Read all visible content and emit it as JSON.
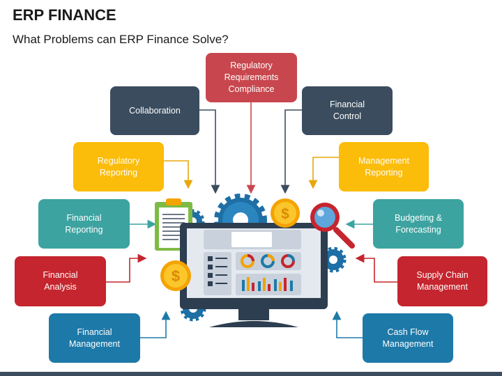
{
  "title": "ERP FINANCE",
  "subtitle": "What Problems can ERP Finance Solve?",
  "boxes": {
    "regulatory_requirements": "Regulatory Requirements Compliance",
    "collaboration": "Collaboration",
    "financial_control": "Financial Control",
    "regulatory_reporting": "Regulatory Reporting",
    "management_reporting": "Management Reporting",
    "financial_reporting": "Financial Reporting",
    "budgeting_forecasting": "Budgeting & Forecasting",
    "financial_analysis": "Financial Analysis",
    "supply_chain": "Supply Chain Management",
    "financial_management": "Financial Management",
    "cash_flow": "Cash Flow Management"
  },
  "colors": {
    "red": "#c8474e",
    "slate": "#3b4c5e",
    "yellow": "#fbbc0a",
    "teal": "#3ca3a0",
    "crimson": "#c5252e",
    "blue": "#1d79a8"
  },
  "icons": [
    "clipboard-icon",
    "gear-icon",
    "dollar-coin-icon",
    "magnifier-icon",
    "monitor-icon"
  ]
}
